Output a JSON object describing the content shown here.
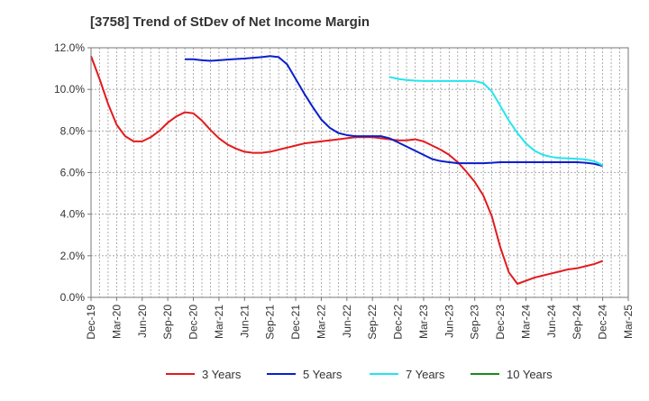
{
  "chart_data": {
    "type": "line",
    "title": "[3758]  Trend of StDev of Net Income Margin",
    "xlabel": "",
    "ylabel": "",
    "ylim": [
      0,
      12
    ],
    "y_ticks": [
      0,
      2,
      4,
      6,
      8,
      10,
      12
    ],
    "y_tick_labels": [
      "0.0%",
      "2.0%",
      "4.0%",
      "6.0%",
      "8.0%",
      "10.0%",
      "12.0%"
    ],
    "x_ticks": [
      "Dec-19",
      "Mar-20",
      "Jun-20",
      "Sep-20",
      "Dec-20",
      "Mar-21",
      "Jun-21",
      "Sep-21",
      "Dec-21",
      "Mar-22",
      "Jun-22",
      "Sep-22",
      "Dec-22",
      "Mar-23",
      "Jun-23",
      "Sep-23",
      "Dec-23",
      "Mar-24",
      "Jun-24",
      "Sep-24",
      "Dec-24",
      "Mar-25"
    ],
    "grid": true,
    "legend_position": "bottom",
    "series": [
      {
        "name": "3 Years",
        "color": "#e31a1c",
        "points": [
          [
            "Dec-19",
            11.6
          ],
          [
            "Jan-20",
            10.5
          ],
          [
            "Feb-20",
            9.3
          ],
          [
            "Mar-20",
            8.3
          ],
          [
            "Apr-20",
            7.75
          ],
          [
            "May-20",
            7.5
          ],
          [
            "Jun-20",
            7.5
          ],
          [
            "Jul-20",
            7.7
          ],
          [
            "Aug-20",
            8.0
          ],
          [
            "Sep-20",
            8.4
          ],
          [
            "Oct-20",
            8.7
          ],
          [
            "Nov-20",
            8.9
          ],
          [
            "Dec-20",
            8.85
          ],
          [
            "Jan-21",
            8.5
          ],
          [
            "Feb-21",
            8.05
          ],
          [
            "Mar-21",
            7.65
          ],
          [
            "Apr-21",
            7.35
          ],
          [
            "May-21",
            7.15
          ],
          [
            "Jun-21",
            7.0
          ],
          [
            "Jul-21",
            6.95
          ],
          [
            "Aug-21",
            6.95
          ],
          [
            "Sep-21",
            7.0
          ],
          [
            "Oct-21",
            7.1
          ],
          [
            "Nov-21",
            7.2
          ],
          [
            "Dec-21",
            7.3
          ],
          [
            "Jan-22",
            7.4
          ],
          [
            "Feb-22",
            7.45
          ],
          [
            "Mar-22",
            7.5
          ],
          [
            "Apr-22",
            7.55
          ],
          [
            "May-22",
            7.6
          ],
          [
            "Jun-22",
            7.65
          ],
          [
            "Jul-22",
            7.7
          ],
          [
            "Aug-22",
            7.7
          ],
          [
            "Sep-22",
            7.7
          ],
          [
            "Oct-22",
            7.65
          ],
          [
            "Nov-22",
            7.6
          ],
          [
            "Dec-22",
            7.55
          ],
          [
            "Jan-23",
            7.55
          ],
          [
            "Feb-23",
            7.6
          ],
          [
            "Mar-23",
            7.5
          ],
          [
            "Apr-23",
            7.3
          ],
          [
            "May-23",
            7.1
          ],
          [
            "Jun-23",
            6.85
          ],
          [
            "Jul-23",
            6.5
          ],
          [
            "Aug-23",
            6.05
          ],
          [
            "Sep-23",
            5.55
          ],
          [
            "Oct-23",
            4.9
          ],
          [
            "Nov-23",
            3.9
          ],
          [
            "Dec-23",
            2.4
          ],
          [
            "Jan-24",
            1.2
          ],
          [
            "Feb-24",
            0.65
          ],
          [
            "Mar-24",
            0.8
          ],
          [
            "Apr-24",
            0.95
          ],
          [
            "May-24",
            1.05
          ],
          [
            "Jun-24",
            1.15
          ],
          [
            "Jul-24",
            1.25
          ],
          [
            "Aug-24",
            1.35
          ],
          [
            "Sep-24",
            1.4
          ],
          [
            "Oct-24",
            1.5
          ],
          [
            "Nov-24",
            1.6
          ],
          [
            "Dec-24",
            1.75
          ]
        ]
      },
      {
        "name": "5 Years",
        "color": "#0a1fcc",
        "points": [
          [
            "Nov-20",
            11.45
          ],
          [
            "Dec-20",
            11.45
          ],
          [
            "Jan-21",
            11.4
          ],
          [
            "Feb-21",
            11.37
          ],
          [
            "Mar-21",
            11.4
          ],
          [
            "Apr-21",
            11.43
          ],
          [
            "May-21",
            11.46
          ],
          [
            "Jun-21",
            11.48
          ],
          [
            "Jul-21",
            11.52
          ],
          [
            "Aug-21",
            11.55
          ],
          [
            "Sep-21",
            11.6
          ],
          [
            "Oct-21",
            11.55
          ],
          [
            "Nov-21",
            11.2
          ],
          [
            "Dec-21",
            10.5
          ],
          [
            "Jan-22",
            9.8
          ],
          [
            "Feb-22",
            9.15
          ],
          [
            "Mar-22",
            8.55
          ],
          [
            "Apr-22",
            8.15
          ],
          [
            "May-22",
            7.9
          ],
          [
            "Jun-22",
            7.8
          ],
          [
            "Jul-22",
            7.75
          ],
          [
            "Aug-22",
            7.75
          ],
          [
            "Sep-22",
            7.75
          ],
          [
            "Oct-22",
            7.75
          ],
          [
            "Nov-22",
            7.65
          ],
          [
            "Dec-22",
            7.45
          ],
          [
            "Jan-23",
            7.25
          ],
          [
            "Feb-23",
            7.05
          ],
          [
            "Mar-23",
            6.85
          ],
          [
            "Apr-23",
            6.65
          ],
          [
            "May-23",
            6.55
          ],
          [
            "Jun-23",
            6.5
          ],
          [
            "Jul-23",
            6.45
          ],
          [
            "Aug-23",
            6.45
          ],
          [
            "Sep-23",
            6.45
          ],
          [
            "Oct-23",
            6.45
          ],
          [
            "Nov-23",
            6.47
          ],
          [
            "Dec-23",
            6.5
          ],
          [
            "Jan-24",
            6.5
          ],
          [
            "Feb-24",
            6.5
          ],
          [
            "Mar-24",
            6.5
          ],
          [
            "Apr-24",
            6.5
          ],
          [
            "May-24",
            6.5
          ],
          [
            "Jun-24",
            6.5
          ],
          [
            "Jul-24",
            6.5
          ],
          [
            "Aug-24",
            6.5
          ],
          [
            "Sep-24",
            6.5
          ],
          [
            "Oct-24",
            6.47
          ],
          [
            "Nov-24",
            6.42
          ],
          [
            "Dec-24",
            6.32
          ]
        ]
      },
      {
        "name": "7 Years",
        "color": "#22e6ee",
        "points": [
          [
            "Nov-22",
            10.6
          ],
          [
            "Dec-22",
            10.5
          ],
          [
            "Jan-23",
            10.45
          ],
          [
            "Feb-23",
            10.42
          ],
          [
            "Mar-23",
            10.4
          ],
          [
            "Apr-23",
            10.4
          ],
          [
            "May-23",
            10.4
          ],
          [
            "Jun-23",
            10.4
          ],
          [
            "Jul-23",
            10.4
          ],
          [
            "Aug-23",
            10.4
          ],
          [
            "Sep-23",
            10.4
          ],
          [
            "Oct-23",
            10.3
          ],
          [
            "Nov-23",
            9.9
          ],
          [
            "Dec-23",
            9.2
          ],
          [
            "Jan-24",
            8.5
          ],
          [
            "Feb-24",
            7.9
          ],
          [
            "Mar-24",
            7.4
          ],
          [
            "Apr-24",
            7.05
          ],
          [
            "May-24",
            6.85
          ],
          [
            "Jun-24",
            6.75
          ],
          [
            "Jul-24",
            6.7
          ],
          [
            "Aug-24",
            6.68
          ],
          [
            "Sep-24",
            6.66
          ],
          [
            "Oct-24",
            6.63
          ],
          [
            "Nov-24",
            6.55
          ],
          [
            "Dec-24",
            6.35
          ]
        ]
      },
      {
        "name": "10 Years",
        "color": "#1a8a1a",
        "points": []
      }
    ]
  }
}
